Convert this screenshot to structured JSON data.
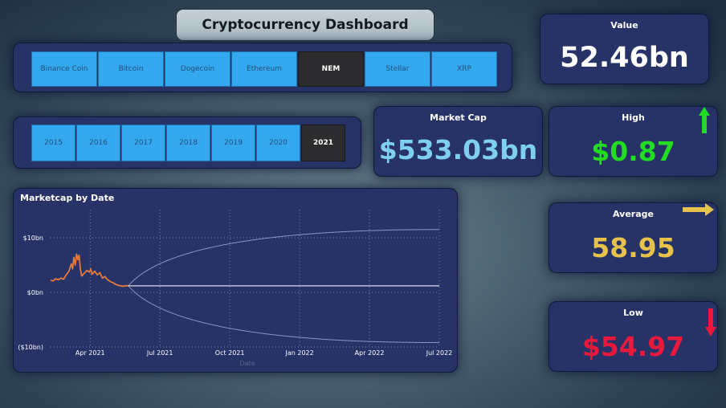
{
  "dashboard": {
    "title": "Cryptocurrency Dashboard"
  },
  "coin_slicer": {
    "items": [
      "Binance Coin",
      "Bitcoin",
      "Dogecoin",
      "Ethereum",
      "NEM",
      "Stellar",
      "XRP"
    ],
    "selected": "NEM"
  },
  "year_slicer": {
    "items": [
      "2015",
      "2016",
      "2017",
      "2018",
      "2019",
      "2020",
      "2021"
    ],
    "selected": "2021"
  },
  "kpis": {
    "value": {
      "label": "Value",
      "value": "52.46bn",
      "color": "#ffffff"
    },
    "market_cap": {
      "label": "Market Cap",
      "value": "$533.03bn",
      "color": "#7fcff0"
    },
    "high": {
      "label": "High",
      "value": "$0.87",
      "color": "#22dd22",
      "indicator": "up-arrow-icon"
    },
    "average": {
      "label": "Average",
      "value": "58.95",
      "color": "#e6c24b",
      "indicator": "right-arrow-icon"
    },
    "low": {
      "label": "Low",
      "value": "$54.97",
      "color": "#e8193c",
      "indicator": "down-arrow-icon"
    }
  },
  "chart_data": {
    "type": "line",
    "title": "Marketcap by Date",
    "xlabel": "Date",
    "ylabel": "",
    "ylim": [
      -10,
      10
    ],
    "y_ticks": [
      {
        "value": 10,
        "label": "$10bn"
      },
      {
        "value": 0,
        "label": "$0bn"
      },
      {
        "value": -10,
        "label": "($10bn)"
      }
    ],
    "x_ticks": [
      "Apr 2021",
      "Jul 2021",
      "Oct 2021",
      "Jan 2022",
      "Apr 2022",
      "Jul 2022"
    ],
    "grid": true,
    "line_color": "#e57a3c",
    "series": [
      {
        "values": [
          [
            0.0,
            2.2
          ],
          [
            0.1,
            2.1
          ],
          [
            0.2,
            2.5
          ],
          [
            0.3,
            2.3
          ],
          [
            0.4,
            2.6
          ],
          [
            0.5,
            2.4
          ],
          [
            0.6,
            3.2
          ],
          [
            0.7,
            3.8
          ],
          [
            0.8,
            5.2
          ],
          [
            0.85,
            4.3
          ],
          [
            0.9,
            6.4
          ],
          [
            0.95,
            5.0
          ],
          [
            1.0,
            7.0
          ],
          [
            1.05,
            6.0
          ],
          [
            1.1,
            6.8
          ],
          [
            1.15,
            4.2
          ],
          [
            1.2,
            3.0
          ],
          [
            1.3,
            3.5
          ],
          [
            1.4,
            4.0
          ],
          [
            1.5,
            3.7
          ],
          [
            1.55,
            4.3
          ],
          [
            1.6,
            3.3
          ],
          [
            1.7,
            3.9
          ],
          [
            1.8,
            3.2
          ],
          [
            1.9,
            3.6
          ],
          [
            2.0,
            2.6
          ],
          [
            2.1,
            2.9
          ],
          [
            2.2,
            2.3
          ],
          [
            2.3,
            2.0
          ],
          [
            2.4,
            1.8
          ],
          [
            2.5,
            1.5
          ],
          [
            2.6,
            1.3
          ],
          [
            2.7,
            1.2
          ],
          [
            2.8,
            1.1
          ],
          [
            2.9,
            1.2
          ],
          [
            3.0,
            1.2
          ]
        ]
      }
    ],
    "forecast": {
      "start": [
        3.0,
        1.2
      ],
      "end_x": 15.0,
      "value": 1.2,
      "upper_end": 11.5,
      "lower_end": -9.2
    }
  }
}
